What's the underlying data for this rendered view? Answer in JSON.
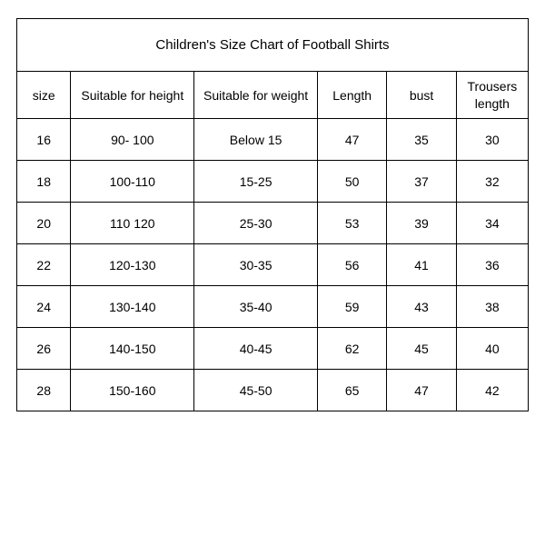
{
  "table": {
    "type": "table",
    "title": "Children's Size Chart of Football Shirts",
    "columns": [
      {
        "key": "size",
        "label": "size"
      },
      {
        "key": "height",
        "label": "Suitable for height"
      },
      {
        "key": "weight",
        "label": "Suitable for weight"
      },
      {
        "key": "length",
        "label": "Length"
      },
      {
        "key": "bust",
        "label": "bust"
      },
      {
        "key": "trouser",
        "label": "Trousers length"
      }
    ],
    "rows": [
      {
        "size": "16",
        "height": "90- 100",
        "weight": "Below 15",
        "length": "47",
        "bust": "35",
        "trouser": "30"
      },
      {
        "size": "18",
        "height": "100-110",
        "weight": "15-25",
        "length": "50",
        "bust": "37",
        "trouser": "32"
      },
      {
        "size": "20",
        "height": "110 120",
        "weight": "25-30",
        "length": "53",
        "bust": "39",
        "trouser": "34"
      },
      {
        "size": "22",
        "height": "120-130",
        "weight": "30-35",
        "length": "56",
        "bust": "41",
        "trouser": "36"
      },
      {
        "size": "24",
        "height": "130-140",
        "weight": "35-40",
        "length": "59",
        "bust": "43",
        "trouser": "38"
      },
      {
        "size": "26",
        "height": "140-150",
        "weight": "40-45",
        "length": "62",
        "bust": "45",
        "trouser": "40"
      },
      {
        "size": "28",
        "height": "150-160",
        "weight": "45-50",
        "length": "65",
        "bust": "47",
        "trouser": "42"
      }
    ],
    "style": {
      "border_color": "#000000",
      "background_color": "#ffffff",
      "text_color": "#000000",
      "title_fontsize": 15,
      "header_fontsize": 14,
      "cell_fontsize": 14,
      "title_row_height": 58,
      "header_row_height": 52,
      "data_row_height": 46,
      "column_widths_pct": [
        10.5,
        24,
        24,
        13.5,
        13.5,
        14
      ],
      "text_align": "center"
    }
  }
}
